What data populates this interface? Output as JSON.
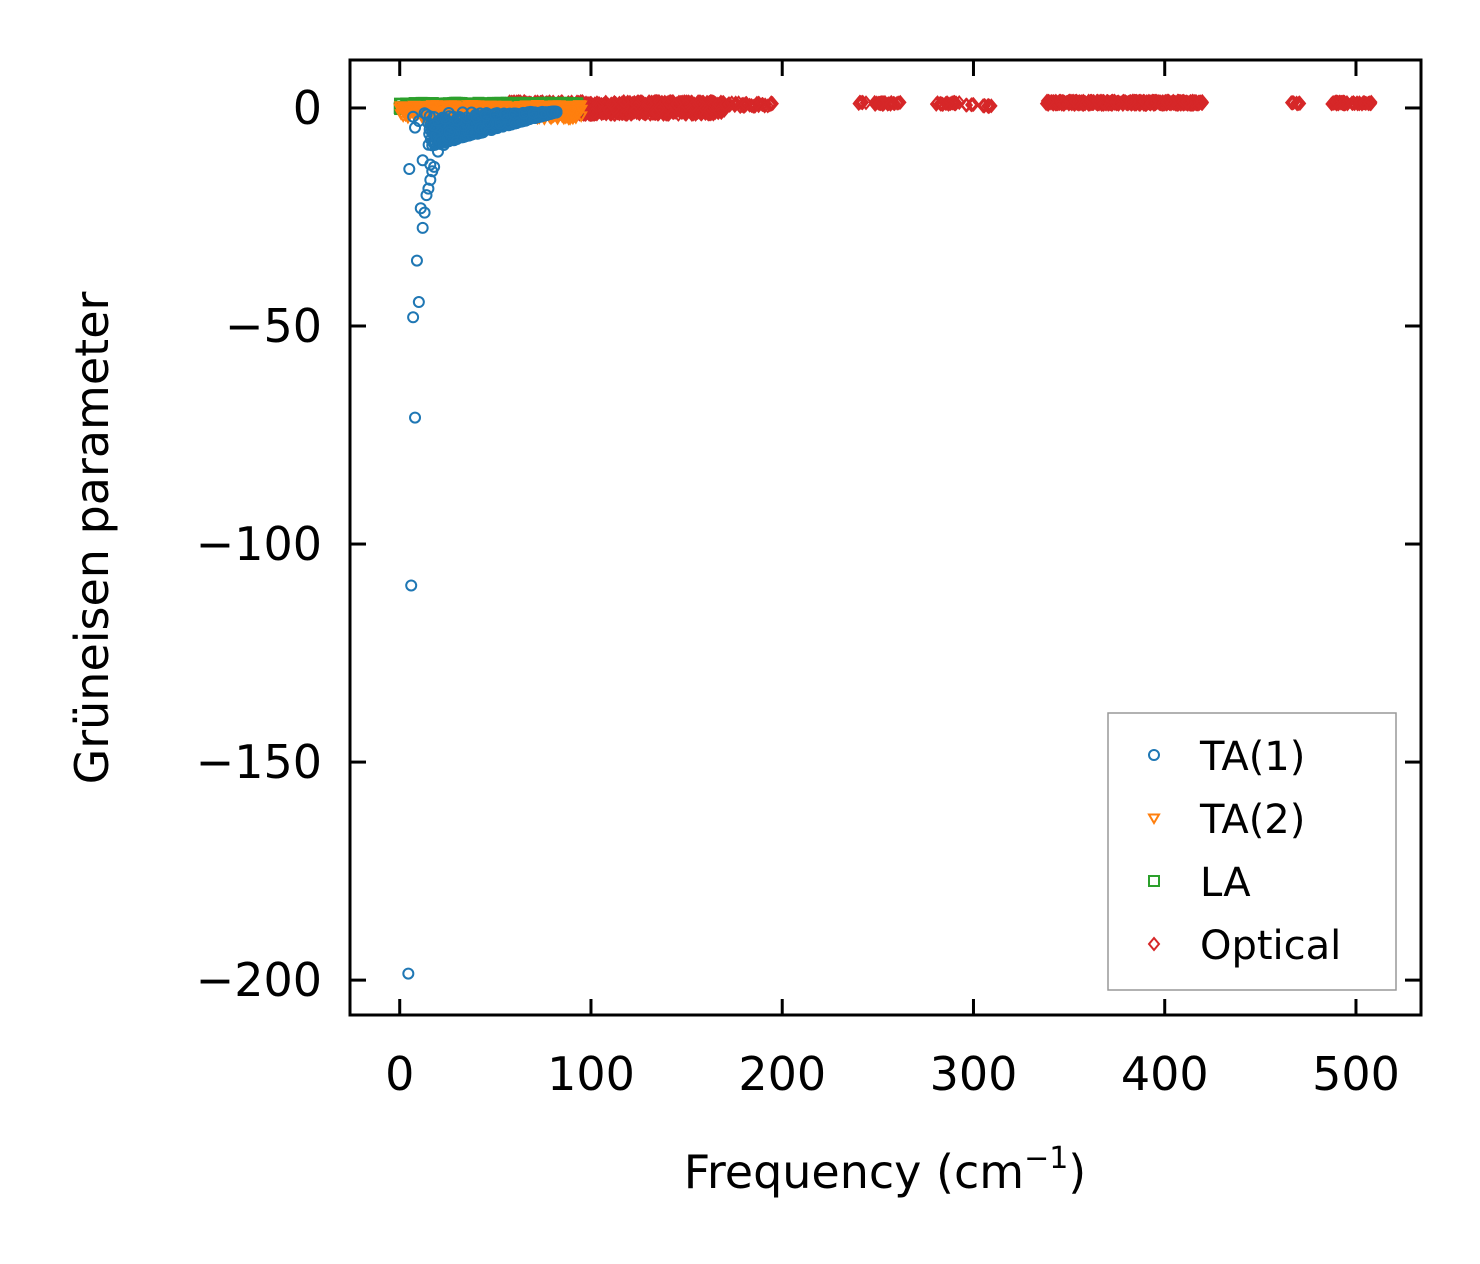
{
  "chart_data": {
    "type": "scatter",
    "title": "",
    "xlabel": "Frequency (cm",
    "xlabel_sup": "−1",
    "xlabel_end": ")",
    "ylabel": "Grüneisen parameter",
    "xlim": [
      -26,
      534
    ],
    "ylim": [
      -208,
      11
    ],
    "xticks": [
      0,
      100,
      200,
      300,
      400,
      500
    ],
    "xtick_labels": [
      "0",
      "100",
      "200",
      "300",
      "400",
      "500"
    ],
    "yticks": [
      0,
      -50,
      -100,
      -150,
      -200
    ],
    "ytick_labels": [
      "0",
      "−50",
      "−100",
      "−150",
      "−200"
    ],
    "grid": false,
    "legend_position": "bottom-right",
    "series": [
      {
        "name": "TA(1)",
        "marker": "circle",
        "color": "#1f77b4",
        "x": [
          4.5,
          6,
          5,
          8,
          7,
          10,
          9,
          12,
          11,
          13,
          14,
          15,
          16,
          17,
          18,
          12,
          16,
          20,
          22,
          8,
          10,
          7,
          14,
          13,
          15,
          17,
          19,
          21,
          23,
          25,
          26,
          18,
          20,
          24,
          28,
          30,
          35,
          40,
          45,
          50,
          55,
          60,
          65,
          70,
          75,
          80,
          82
        ],
        "y": [
          -198.5,
          -109.5,
          -14,
          -71,
          -48,
          -44.5,
          -35,
          -27.5,
          -23,
          -24,
          -20,
          -18.5,
          -16.5,
          -14.5,
          -13.5,
          -12,
          -13,
          -10,
          -8,
          -4.5,
          -3,
          -2,
          -1.5,
          -1.2,
          -3.5,
          -5,
          -6.5,
          -7.5,
          -8.5,
          -7,
          -5.5,
          -4,
          -3,
          -2.5,
          -2,
          -2.8,
          -2.2,
          -2,
          -1.8,
          -1.6,
          -1.5,
          -1.4,
          -1.3,
          -1.2,
          -1.1,
          -1,
          -1
        ],
        "x_dense_range": [
          15,
          82
        ],
        "y_dense_range": [
          -9,
          -0.8
        ]
      },
      {
        "name": "TA(2)",
        "marker": "triangle-down",
        "color": "#ff7f0e",
        "x": [
          0,
          5,
          10,
          15,
          20,
          30,
          40,
          50,
          60,
          70,
          80,
          90,
          95
        ],
        "y": [
          0,
          0.2,
          0,
          -0.5,
          -0.8,
          -0.5,
          -0.3,
          -0.2,
          -0.5,
          -1,
          -0.8,
          -0.5,
          -0.3
        ],
        "x_dense_range": [
          0,
          95
        ],
        "y_dense_range": [
          -2.5,
          0.8
        ]
      },
      {
        "name": "LA",
        "marker": "square",
        "color": "#2ca02c",
        "x": [
          0,
          10,
          20,
          30,
          40,
          50,
          60,
          70,
          80,
          90,
          93
        ],
        "y": [
          0,
          0.5,
          1,
          0.8,
          0.9,
          1,
          1.1,
          0.8,
          0.7,
          0.6,
          0.5
        ],
        "x_dense_range": [
          0,
          93
        ],
        "y_dense_range": [
          -0.5,
          1.2
        ]
      },
      {
        "name": "Optical",
        "marker": "diamond",
        "color": "#d62728",
        "segments": [
          {
            "x_range": [
              55,
              170
            ],
            "y_range": [
              -1.5,
              1.5
            ],
            "count": 900
          },
          {
            "x_range": [
              170,
              195
            ],
            "y_range": [
              0.3,
              1.2
            ],
            "count": 40
          },
          {
            "x_range": [
              240,
              244
            ],
            "y_range": [
              1,
              1.4
            ],
            "count": 5
          },
          {
            "x_range": [
              248,
              262
            ],
            "y_range": [
              0.8,
              1.3
            ],
            "count": 25
          },
          {
            "x_range": [
              280,
              293
            ],
            "y_range": [
              0.8,
              1.3
            ],
            "count": 25
          },
          {
            "x_range": [
              296,
              300
            ],
            "y_range": [
              0.6,
              0.9
            ],
            "count": 4
          },
          {
            "x_range": [
              305,
              310
            ],
            "y_range": [
              0.2,
              0.6
            ],
            "count": 8
          },
          {
            "x_range": [
              338,
              420
            ],
            "y_range": [
              0.8,
              1.6
            ],
            "count": 420
          },
          {
            "x_range": [
              466,
              471
            ],
            "y_range": [
              0.8,
              1.3
            ],
            "count": 8
          },
          {
            "x_range": [
              487,
              508
            ],
            "y_range": [
              0.9,
              1.4
            ],
            "count": 60
          }
        ],
        "x": [
          195,
          240,
          300,
          305,
          470
        ],
        "y": [
          1,
          1,
          0.8,
          0.5,
          1
        ]
      }
    ]
  }
}
